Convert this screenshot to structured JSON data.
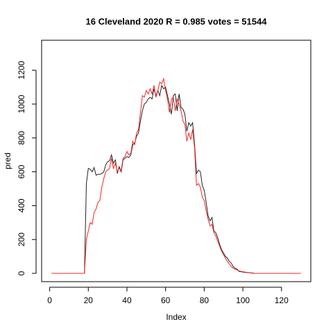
{
  "chart_data": {
    "type": "line",
    "title": "16 Cleveland 2020 R = 0.985 votes = 51544",
    "x_label": "Index",
    "y_label": "pred",
    "x": [
      1,
      2,
      3,
      4,
      5,
      6,
      7,
      8,
      9,
      10,
      11,
      12,
      13,
      14,
      15,
      16,
      17,
      18,
      19,
      20,
      21,
      22,
      23,
      24,
      25,
      26,
      27,
      28,
      29,
      30,
      31,
      32,
      33,
      34,
      35,
      36,
      37,
      38,
      39,
      40,
      41,
      42,
      43,
      44,
      45,
      46,
      47,
      48,
      49,
      50,
      51,
      52,
      53,
      54,
      55,
      56,
      57,
      58,
      59,
      60,
      61,
      62,
      63,
      64,
      65,
      66,
      67,
      68,
      69,
      70,
      71,
      72,
      73,
      74,
      75,
      76,
      77,
      78,
      79,
      80,
      81,
      82,
      83,
      84,
      85,
      86,
      87,
      88,
      89,
      90,
      91,
      92,
      93,
      94,
      95,
      96,
      97,
      98,
      99,
      100,
      101,
      102,
      103,
      104,
      105,
      106,
      107,
      108,
      109,
      110,
      111,
      112,
      113,
      114,
      115,
      116,
      117,
      118,
      119,
      120,
      121,
      122,
      123,
      124,
      125,
      126,
      127,
      128,
      129,
      130
    ],
    "series": [
      {
        "color": "#222222",
        "values": [
          0,
          0,
          0,
          0,
          0,
          0,
          0,
          0,
          0,
          0,
          0,
          0,
          0,
          0,
          0,
          0,
          0,
          0,
          530,
          620,
          615,
          600,
          625,
          580,
          585,
          585,
          590,
          600,
          640,
          660,
          665,
          700,
          650,
          670,
          590,
          630,
          600,
          670,
          680,
          690,
          685,
          700,
          760,
          770,
          810,
          830,
          900,
          960,
          1000,
          1010,
          1030,
          1040,
          1030,
          1090,
          1050,
          1080,
          1050,
          1110,
          1090,
          1100,
          1050,
          1000,
          940,
          1050,
          1060,
          960,
          1060,
          980,
          970,
          940,
          840,
          890,
          870,
          890,
          760,
          590,
          610,
          600,
          520,
          490,
          420,
          340,
          310,
          330,
          250,
          240,
          210,
          170,
          140,
          120,
          100,
          90,
          70,
          60,
          40,
          30,
          25,
          12,
          10,
          8,
          6,
          5,
          4,
          3,
          2,
          0,
          0,
          0,
          0,
          0,
          0,
          0,
          0,
          0,
          0,
          0,
          0,
          0,
          0,
          0,
          0,
          0,
          0,
          0,
          0,
          0,
          0,
          0,
          0,
          0
        ]
      },
      {
        "color": "#ff2020",
        "values": [
          0,
          0,
          0,
          0,
          0,
          0,
          0,
          0,
          0,
          0,
          0,
          0,
          0,
          0,
          0,
          0,
          0,
          0,
          200,
          250,
          300,
          290,
          360,
          380,
          420,
          430,
          510,
          560,
          600,
          610,
          620,
          680,
          620,
          650,
          600,
          620,
          610,
          680,
          690,
          720,
          700,
          710,
          780,
          760,
          830,
          850,
          950,
          1050,
          1040,
          1080,
          1060,
          1090,
          1060,
          1110,
          1040,
          1080,
          1130,
          1120,
          1150,
          1080,
          1030,
          950,
          1030,
          1040,
          960,
          1030,
          1000,
          960,
          900,
          880,
          780,
          830,
          790,
          850,
          740,
          520,
          530,
          510,
          450,
          430,
          370,
          320,
          280,
          290,
          240,
          220,
          190,
          160,
          130,
          110,
          90,
          70,
          55,
          40,
          30,
          25,
          20,
          15,
          12,
          10,
          8,
          6,
          5,
          4,
          0,
          0,
          0,
          0,
          0,
          0,
          0,
          0,
          0,
          0,
          0,
          0,
          0,
          0,
          0,
          0,
          0,
          0,
          0,
          0,
          0,
          0,
          0,
          0,
          0,
          0
        ]
      }
    ],
    "xlim": [
      -4.16,
      135.16
    ],
    "ylim": [
      -49,
      1377
    ],
    "xticks": [
      0,
      20,
      40,
      60,
      80,
      100,
      120
    ],
    "yticks": [
      0,
      200,
      400,
      600,
      800,
      1000,
      1200
    ]
  }
}
